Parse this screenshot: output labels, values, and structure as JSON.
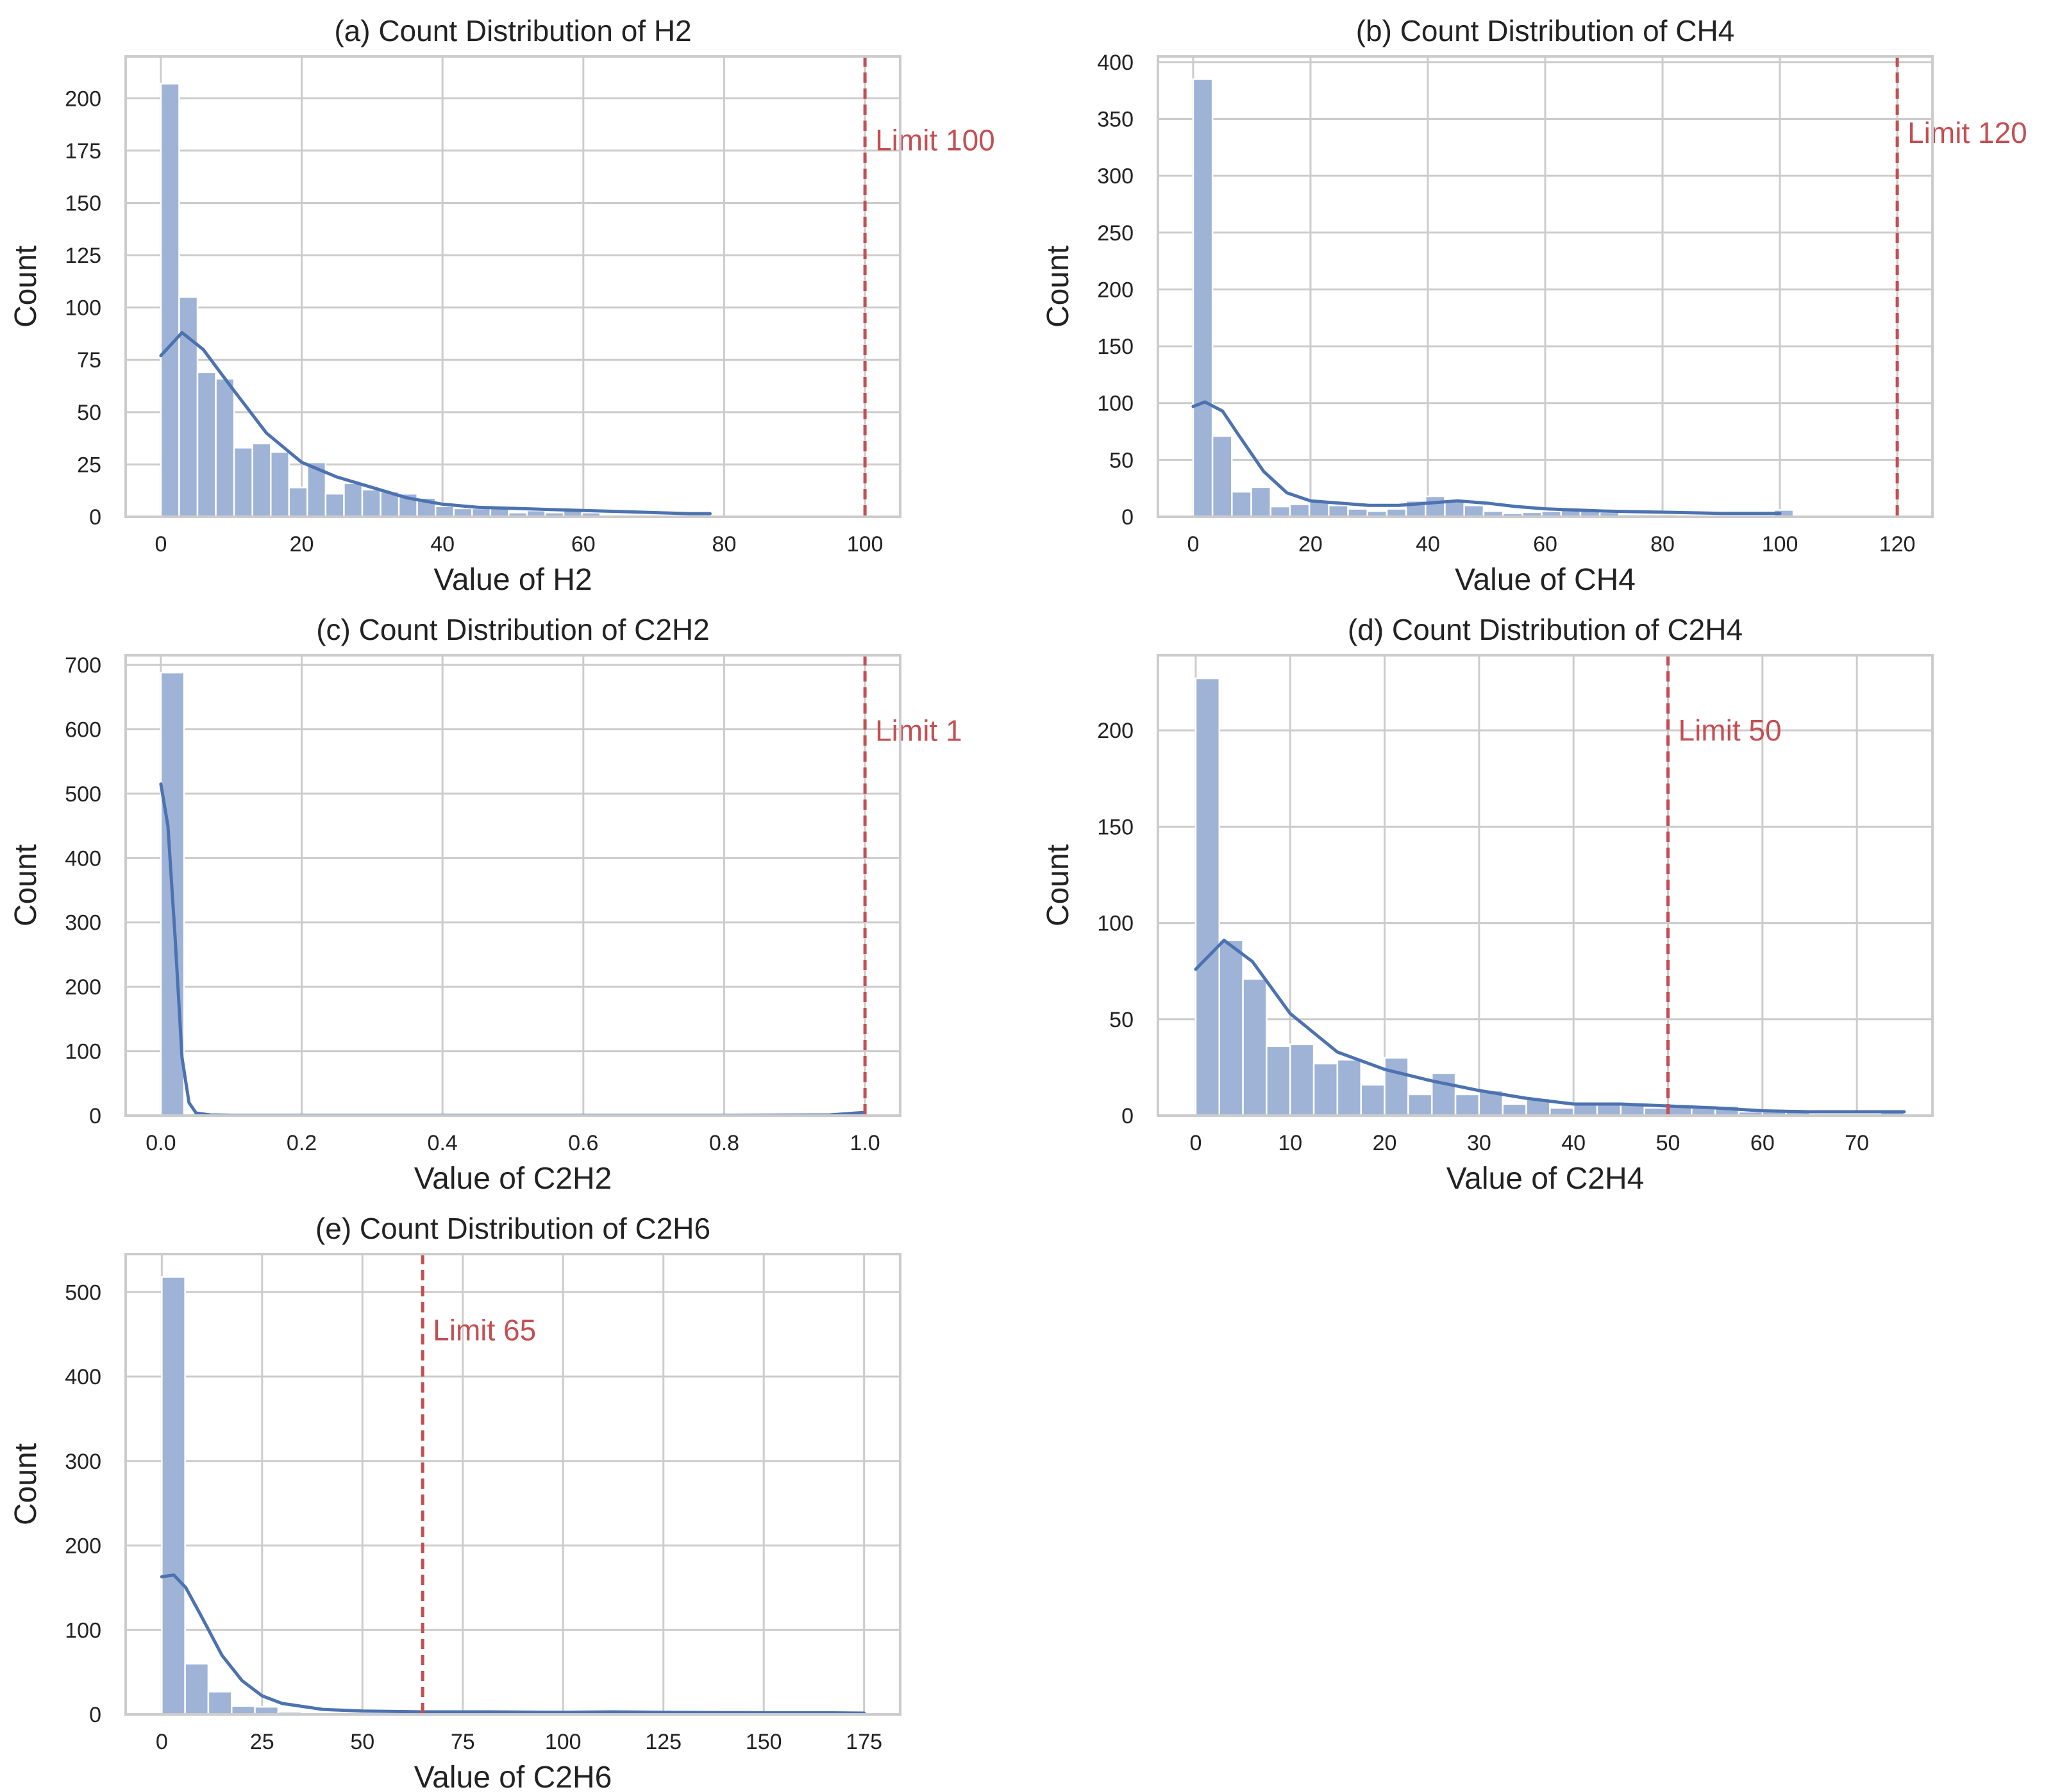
{
  "colors": {
    "bar": "#9fb3d7",
    "kde": "#4c72b0",
    "limit": "#c44e52",
    "grid": "#cccccc",
    "frame": "#cccccc",
    "text": "#222222"
  },
  "chart_data": [
    {
      "type": "bar",
      "id": "h2",
      "title": "(a) Count Distribution of H2",
      "xlabel": "Value of H2",
      "ylabel": "Count",
      "xlim": [
        -5,
        105
      ],
      "ylim": [
        0,
        220
      ],
      "xticks": [
        0,
        20,
        40,
        60,
        80,
        100
      ],
      "xtick_labels": [
        "0",
        "20",
        "40",
        "60",
        "80",
        "100"
      ],
      "yticks": [
        0,
        25,
        50,
        75,
        100,
        125,
        150,
        175,
        200
      ],
      "ytick_labels": [
        "0",
        "25",
        "50",
        "75",
        "100",
        "125",
        "150",
        "175",
        "200"
      ],
      "bin_start": 0,
      "bin_width": 2.6,
      "values": [
        207,
        105,
        69,
        66,
        33,
        35,
        31,
        14,
        26,
        11,
        16,
        13,
        12,
        11,
        9,
        5,
        4,
        4,
        4,
        2,
        3,
        2,
        3,
        2,
        1,
        0,
        1,
        1,
        1,
        1
      ],
      "kde": {
        "x": [
          0,
          3,
          6,
          10,
          15,
          20,
          25,
          30,
          35,
          40,
          45,
          50,
          55,
          60,
          65,
          70,
          75,
          78
        ],
        "y": [
          77,
          88,
          80,
          62,
          40,
          26,
          19,
          14,
          9,
          6,
          4.5,
          4,
          3.5,
          3,
          2.5,
          2,
          1.5,
          1.5
        ]
      },
      "limit": {
        "value": 100,
        "label": "Limit 100",
        "label_y": 180
      }
    },
    {
      "type": "bar",
      "id": "ch4",
      "title": "(b) Count Distribution of CH4",
      "xlabel": "Value of CH4",
      "ylabel": "Count",
      "xlim": [
        -6,
        126
      ],
      "ylim": [
        0,
        405
      ],
      "xticks": [
        0,
        20,
        40,
        60,
        80,
        100,
        120
      ],
      "xtick_labels": [
        "0",
        "20",
        "40",
        "60",
        "80",
        "100",
        "120"
      ],
      "yticks": [
        0,
        50,
        100,
        150,
        200,
        250,
        300,
        350,
        400
      ],
      "ytick_labels": [
        "0",
        "50",
        "100",
        "150",
        "200",
        "250",
        "300",
        "350",
        "400"
      ],
      "bin_start": 0,
      "bin_width": 3.3,
      "values": [
        385,
        71,
        22,
        26,
        9,
        11,
        13,
        10,
        7,
        5,
        7,
        14,
        18,
        13,
        10,
        5,
        3,
        4,
        5,
        7,
        5,
        4,
        2,
        2,
        2,
        1,
        1,
        1,
        1,
        1,
        6
      ],
      "kde": {
        "x": [
          0,
          2,
          5,
          8,
          12,
          16,
          20,
          25,
          30,
          35,
          40,
          45,
          50,
          55,
          60,
          65,
          70,
          80,
          90,
          100
        ],
        "y": [
          97,
          101,
          93,
          70,
          40,
          21,
          14,
          12,
          10,
          10,
          12,
          14,
          12,
          9,
          7,
          6,
          5,
          4,
          3,
          3
        ]
      },
      "limit": {
        "value": 120,
        "label": "Limit 120",
        "label_y": 338
      }
    },
    {
      "type": "bar",
      "id": "c2h2",
      "title": "(c) Count Distribution of C2H2",
      "xlabel": "Value of C2H2",
      "ylabel": "Count",
      "xlim": [
        -0.05,
        1.05
      ],
      "ylim": [
        0,
        715
      ],
      "xticks": [
        0,
        0.2,
        0.4,
        0.6,
        0.8,
        1
      ],
      "xtick_labels": [
        "0.0",
        "0.2",
        "0.4",
        "0.6",
        "0.8",
        "1.0"
      ],
      "yticks": [
        0,
        100,
        200,
        300,
        400,
        500,
        600,
        700
      ],
      "ytick_labels": [
        "0",
        "100",
        "200",
        "300",
        "400",
        "500",
        "600",
        "700"
      ],
      "bin_start": 0,
      "bin_width": 0.033,
      "values": [
        688
      ],
      "kde": {
        "x": [
          0,
          0.01,
          0.02,
          0.03,
          0.04,
          0.05,
          0.07,
          0.1,
          0.2,
          0.4,
          0.6,
          0.8,
          0.95,
          1.0
        ],
        "y": [
          515,
          450,
          280,
          90,
          20,
          4,
          1,
          0.5,
          0.5,
          0.5,
          0.5,
          0.5,
          1,
          5
        ]
      },
      "limit": {
        "value": 1,
        "label": "Limit 1",
        "label_y": 598
      }
    },
    {
      "type": "bar",
      "id": "c2h4",
      "title": "(d) Count Distribution of C2H4",
      "xlabel": "Value of C2H4",
      "ylabel": "Count",
      "xlim": [
        -4,
        78
      ],
      "ylim": [
        0,
        239
      ],
      "xticks": [
        0,
        10,
        20,
        30,
        40,
        50,
        60,
        70
      ],
      "xtick_labels": [
        "0",
        "10",
        "20",
        "30",
        "40",
        "50",
        "60",
        "70"
      ],
      "yticks": [
        0,
        50,
        100,
        150,
        200
      ],
      "ytick_labels": [
        "0",
        "50",
        "100",
        "150",
        "200"
      ],
      "bin_start": 0,
      "bin_width": 2.5,
      "values": [
        227,
        91,
        71,
        36,
        37,
        27,
        29,
        16,
        30,
        11,
        22,
        11,
        13,
        6,
        9,
        4,
        6,
        6,
        6,
        4,
        5,
        4,
        5,
        2,
        2,
        2,
        1,
        1,
        1,
        3
      ],
      "kde": {
        "x": [
          0,
          3,
          6,
          10,
          15,
          20,
          25,
          30,
          35,
          40,
          45,
          50,
          55,
          60,
          65,
          70,
          75
        ],
        "y": [
          76,
          91,
          80,
          53,
          33,
          24,
          18,
          13,
          9,
          6,
          6,
          5,
          4,
          2.5,
          2,
          2,
          2
        ]
      },
      "limit": {
        "value": 50,
        "label": "Limit 50",
        "label_y": 200
      }
    },
    {
      "type": "bar",
      "id": "c2h6",
      "title": "(e) Count Distribution of C2H6",
      "xlabel": "Value of C2H6",
      "ylabel": "Count",
      "xlim": [
        -9,
        184
      ],
      "ylim": [
        0,
        545
      ],
      "xticks": [
        0,
        25,
        50,
        75,
        100,
        125,
        150,
        175
      ],
      "xtick_labels": [
        "0",
        "25",
        "50",
        "75",
        "100",
        "125",
        "150",
        "175"
      ],
      "yticks": [
        0,
        100,
        200,
        300,
        400,
        500
      ],
      "ytick_labels": [
        "0",
        "100",
        "200",
        "300",
        "400",
        "500"
      ],
      "bin_start": 0,
      "bin_width": 5.8,
      "values": [
        518,
        60,
        27,
        10,
        9,
        3,
        2,
        1,
        1,
        1,
        1,
        1,
        1,
        1,
        1,
        1,
        1,
        1,
        1,
        1,
        1,
        1,
        1,
        1,
        1,
        1,
        1,
        1,
        1,
        1
      ],
      "kde": {
        "x": [
          0,
          3,
          6,
          10,
          15,
          20,
          25,
          30,
          40,
          50,
          65,
          80,
          100,
          112,
          125,
          150,
          165,
          175
        ],
        "y": [
          163,
          165,
          150,
          115,
          70,
          40,
          22,
          13,
          6,
          4,
          3,
          3,
          2.5,
          3,
          2.5,
          2,
          2,
          1.5
        ]
      },
      "limit": {
        "value": 65,
        "label": "Limit 65",
        "label_y": 455
      }
    }
  ]
}
